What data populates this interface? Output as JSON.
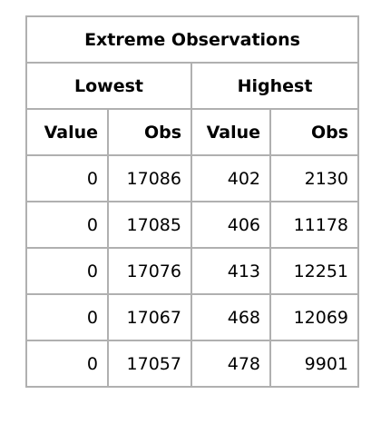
{
  "table": {
    "title": "Extreme Observations",
    "groups": [
      "Lowest",
      "Highest"
    ],
    "columns": [
      "Value",
      "Obs",
      "Value",
      "Obs"
    ],
    "rows": [
      [
        "0",
        "17086",
        "402",
        "2130"
      ],
      [
        "0",
        "17085",
        "406",
        "11178"
      ],
      [
        "0",
        "17076",
        "413",
        "12251"
      ],
      [
        "0",
        "17067",
        "468",
        "12069"
      ],
      [
        "0",
        "17057",
        "478",
        "9901"
      ]
    ]
  }
}
